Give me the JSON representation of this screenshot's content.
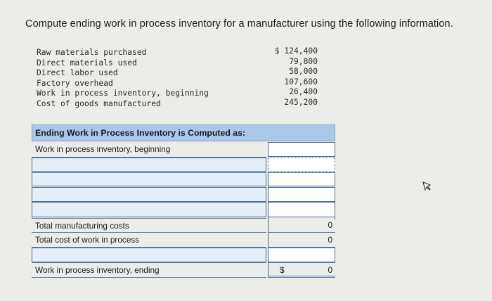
{
  "question": "Compute ending work in process inventory for a manufacturer using the following information.",
  "given": [
    {
      "label": "Raw materials purchased",
      "value": "$ 124,400"
    },
    {
      "label": "Direct materials used",
      "value": "79,800"
    },
    {
      "label": "Direct labor used",
      "value": "58,000"
    },
    {
      "label": "Factory overhead",
      "value": "107,600"
    },
    {
      "label": "Work in process inventory, beginning",
      "value": "26,400"
    },
    {
      "label": "Cost of goods manufactured",
      "value": "245,200"
    }
  ],
  "table": {
    "header": "Ending Work in Process Inventory is Computed as:",
    "rows": {
      "wip_beginning": "Work in process inventory, beginning",
      "total_mfg_costs": "Total manufacturing costs",
      "total_mfg_costs_value": "0",
      "total_cost_wip": "Total cost of work in process",
      "total_cost_wip_value": "0",
      "wip_ending": "Work in process inventory, ending",
      "wip_ending_currency": "$",
      "wip_ending_value": "0"
    }
  },
  "icons": {
    "cursor": "mouse-pointer-icon"
  }
}
